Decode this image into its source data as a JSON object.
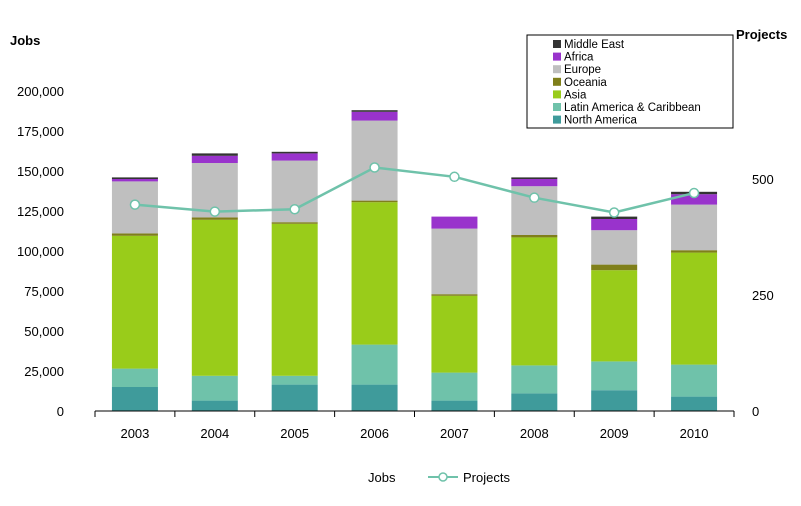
{
  "chart_data": {
    "type": "bar",
    "stacked": true,
    "left_axis_label": "Jobs",
    "right_axis_label": "Projects",
    "categories": [
      "2003",
      "2004",
      "2005",
      "2006",
      "2007",
      "2008",
      "2009",
      "2010"
    ],
    "ylim_left": [
      0,
      200000
    ],
    "yticks_left": [
      "0",
      "25,000",
      "50,000",
      "75,000",
      "100,000",
      "125,000",
      "150,000",
      "175,000",
      "200,000"
    ],
    "ylim_right": [
      0,
      690
    ],
    "yticks_right": [
      "0",
      "250",
      "500"
    ],
    "series": [
      {
        "name": "North America",
        "color": "#3f9b9b",
        "values": [
          15000,
          6500,
          16500,
          16500,
          6500,
          11000,
          13000,
          9000
        ]
      },
      {
        "name": "Latin America & Caribbean",
        "color": "#6fc2aa",
        "values": [
          11500,
          15500,
          5500,
          25000,
          17500,
          17500,
          18000,
          20000
        ]
      },
      {
        "name": "Asia",
        "color": "#99cc1a",
        "values": [
          83000,
          97500,
          95000,
          89000,
          48000,
          80000,
          57000,
          70000
        ]
      },
      {
        "name": "Oceania",
        "color": "#7f7f1a",
        "values": [
          1500,
          1500,
          1000,
          1000,
          1000,
          1500,
          3500,
          1500
        ]
      },
      {
        "name": "Europe",
        "color": "#bfbfbf",
        "values": [
          32500,
          34000,
          38500,
          50000,
          41000,
          30500,
          21500,
          28500
        ]
      },
      {
        "name": "Africa",
        "color": "#9933cc",
        "values": [
          1500,
          4500,
          4500,
          5500,
          7500,
          4500,
          7000,
          6500
        ]
      },
      {
        "name": "Middle East",
        "color": "#333333",
        "values": [
          1000,
          1500,
          1000,
          1000,
          0,
          1000,
          1500,
          1500
        ]
      }
    ],
    "line_series": {
      "name": "Projects",
      "axis": "right",
      "color": "#6fc2aa",
      "values": [
        445,
        430,
        435,
        525,
        505,
        460,
        428,
        470
      ]
    },
    "legend_labels": [
      "Middle East",
      "Africa",
      "Europe",
      "Oceania",
      "Asia",
      "Latin America & Caribbean",
      "North America"
    ],
    "bottom_legend": {
      "bars_label": "Jobs",
      "line_label": "Projects"
    },
    "grid": false,
    "legend_position": "top-right"
  }
}
